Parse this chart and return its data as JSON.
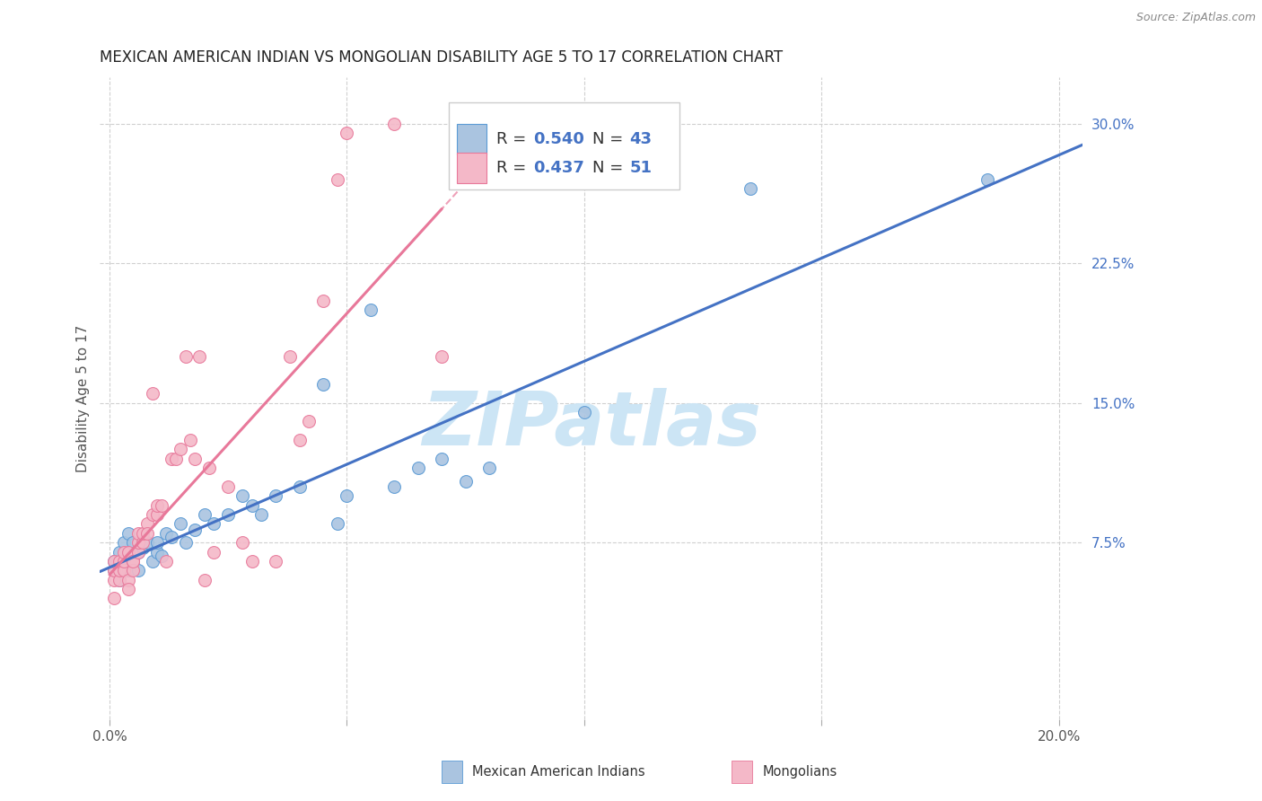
{
  "title": "MEXICAN AMERICAN INDIAN VS MONGOLIAN DISABILITY AGE 5 TO 17 CORRELATION CHART",
  "source": "Source: ZipAtlas.com",
  "ylabel": "Disability Age 5 to 17",
  "xlim": [
    -0.002,
    0.205
  ],
  "ylim": [
    -0.02,
    0.325
  ],
  "xticks": [
    0.0,
    0.05,
    0.1,
    0.15,
    0.2
  ],
  "xtick_labels": [
    "0.0%",
    "",
    "",
    "",
    "20.0%"
  ],
  "ytick_right": [
    0.075,
    0.15,
    0.225,
    0.3
  ],
  "ytick_right_labels": [
    "7.5%",
    "15.0%",
    "22.5%",
    "30.0%"
  ],
  "blue_color": "#aac4e0",
  "pink_color": "#f4b8c8",
  "blue_edge": "#5b9bd5",
  "pink_edge": "#e8789a",
  "trend_blue": "#4472c4",
  "trend_pink": "#e8789a",
  "blue_scatter_x": [
    0.001,
    0.001,
    0.002,
    0.002,
    0.003,
    0.003,
    0.004,
    0.004,
    0.005,
    0.005,
    0.006,
    0.006,
    0.007,
    0.008,
    0.009,
    0.01,
    0.01,
    0.011,
    0.012,
    0.013,
    0.015,
    0.016,
    0.018,
    0.02,
    0.022,
    0.025,
    0.028,
    0.03,
    0.032,
    0.035,
    0.04,
    0.045,
    0.048,
    0.05,
    0.055,
    0.06,
    0.065,
    0.07,
    0.075,
    0.08,
    0.1,
    0.135,
    0.185
  ],
  "blue_scatter_y": [
    0.06,
    0.065,
    0.055,
    0.07,
    0.065,
    0.075,
    0.06,
    0.08,
    0.065,
    0.075,
    0.07,
    0.06,
    0.072,
    0.075,
    0.065,
    0.07,
    0.075,
    0.068,
    0.08,
    0.078,
    0.085,
    0.075,
    0.082,
    0.09,
    0.085,
    0.09,
    0.1,
    0.095,
    0.09,
    0.1,
    0.105,
    0.16,
    0.085,
    0.1,
    0.2,
    0.105,
    0.115,
    0.12,
    0.108,
    0.115,
    0.145,
    0.265,
    0.27
  ],
  "pink_scatter_x": [
    0.001,
    0.001,
    0.001,
    0.001,
    0.002,
    0.002,
    0.002,
    0.003,
    0.003,
    0.003,
    0.004,
    0.004,
    0.004,
    0.005,
    0.005,
    0.005,
    0.006,
    0.006,
    0.006,
    0.007,
    0.007,
    0.008,
    0.008,
    0.009,
    0.009,
    0.01,
    0.01,
    0.011,
    0.012,
    0.013,
    0.014,
    0.015,
    0.016,
    0.017,
    0.018,
    0.019,
    0.02,
    0.021,
    0.022,
    0.025,
    0.028,
    0.03,
    0.035,
    0.038,
    0.04,
    0.042,
    0.045,
    0.048,
    0.05,
    0.06,
    0.07
  ],
  "pink_scatter_y": [
    0.055,
    0.06,
    0.065,
    0.045,
    0.055,
    0.06,
    0.065,
    0.06,
    0.065,
    0.07,
    0.055,
    0.07,
    0.05,
    0.065,
    0.06,
    0.065,
    0.07,
    0.075,
    0.08,
    0.075,
    0.08,
    0.085,
    0.08,
    0.09,
    0.155,
    0.09,
    0.095,
    0.095,
    0.065,
    0.12,
    0.12,
    0.125,
    0.175,
    0.13,
    0.12,
    0.175,
    0.055,
    0.115,
    0.07,
    0.105,
    0.075,
    0.065,
    0.065,
    0.175,
    0.13,
    0.14,
    0.205,
    0.27,
    0.295,
    0.3,
    0.175
  ],
  "background_color": "#ffffff",
  "grid_color": "#d0d0d0",
  "title_fontsize": 12,
  "axis_label_fontsize": 11,
  "tick_fontsize": 11,
  "legend_fontsize": 13,
  "watermark_text": "ZIPatlas",
  "watermark_color": "#cce5f5",
  "watermark_fontsize": 60
}
